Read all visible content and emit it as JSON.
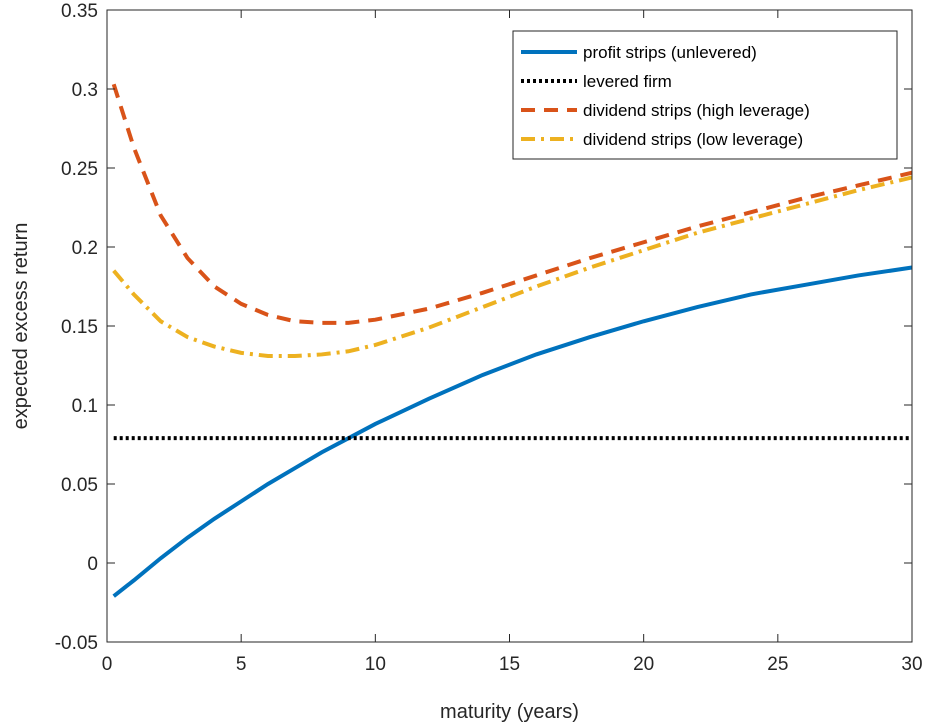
{
  "chart_data": {
    "type": "line",
    "title": "",
    "xlabel": "maturity (years)",
    "ylabel": "expected excess return",
    "xlim": [
      0,
      30
    ],
    "ylim": [
      -0.05,
      0.35
    ],
    "xticks": [
      0,
      5,
      10,
      15,
      20,
      25,
      30
    ],
    "xtick_labels": [
      "0",
      "5",
      "10",
      "15",
      "20",
      "25",
      "30"
    ],
    "yticks": [
      -0.05,
      0,
      0.05,
      0.1,
      0.15,
      0.2,
      0.25,
      0.3,
      0.35
    ],
    "ytick_labels": [
      "-0.05",
      "0",
      "0.05",
      "0.1",
      "0.15",
      "0.2",
      "0.25",
      "0.3",
      "0.35"
    ],
    "grid": false,
    "legend_position": "top-right",
    "x": [
      0.25,
      1,
      2,
      3,
      4,
      5,
      6,
      7,
      8,
      9,
      10,
      12,
      14,
      16,
      18,
      20,
      22,
      24,
      26,
      28,
      30
    ],
    "series": [
      {
        "name": "profit strips (unlevered)",
        "color": "#0072BD",
        "style": "solid",
        "values": [
          -0.021,
          -0.011,
          0.003,
          0.016,
          0.028,
          0.039,
          0.05,
          0.06,
          0.07,
          0.079,
          0.088,
          0.104,
          0.119,
          0.132,
          0.143,
          0.153,
          0.162,
          0.17,
          0.176,
          0.182,
          0.187
        ]
      },
      {
        "name": "levered firm",
        "color": "#000000",
        "style": "dotted",
        "values": [
          0.079,
          0.079,
          0.079,
          0.079,
          0.079,
          0.079,
          0.079,
          0.079,
          0.079,
          0.079,
          0.079,
          0.079,
          0.079,
          0.079,
          0.079,
          0.079,
          0.079,
          0.079,
          0.079,
          0.079,
          0.079
        ]
      },
      {
        "name": "dividend strips (high leverage)",
        "color": "#D95319",
        "style": "dashed",
        "values": [
          0.303,
          0.263,
          0.22,
          0.193,
          0.175,
          0.164,
          0.157,
          0.153,
          0.152,
          0.152,
          0.154,
          0.161,
          0.171,
          0.182,
          0.193,
          0.203,
          0.213,
          0.222,
          0.231,
          0.239,
          0.247
        ]
      },
      {
        "name": "dividend strips (low leverage)",
        "color": "#EDB120",
        "style": "dashdot",
        "values": [
          0.185,
          0.17,
          0.153,
          0.143,
          0.137,
          0.133,
          0.131,
          0.131,
          0.132,
          0.134,
          0.138,
          0.149,
          0.162,
          0.175,
          0.187,
          0.198,
          0.209,
          0.218,
          0.227,
          0.236,
          0.244
        ]
      }
    ]
  }
}
